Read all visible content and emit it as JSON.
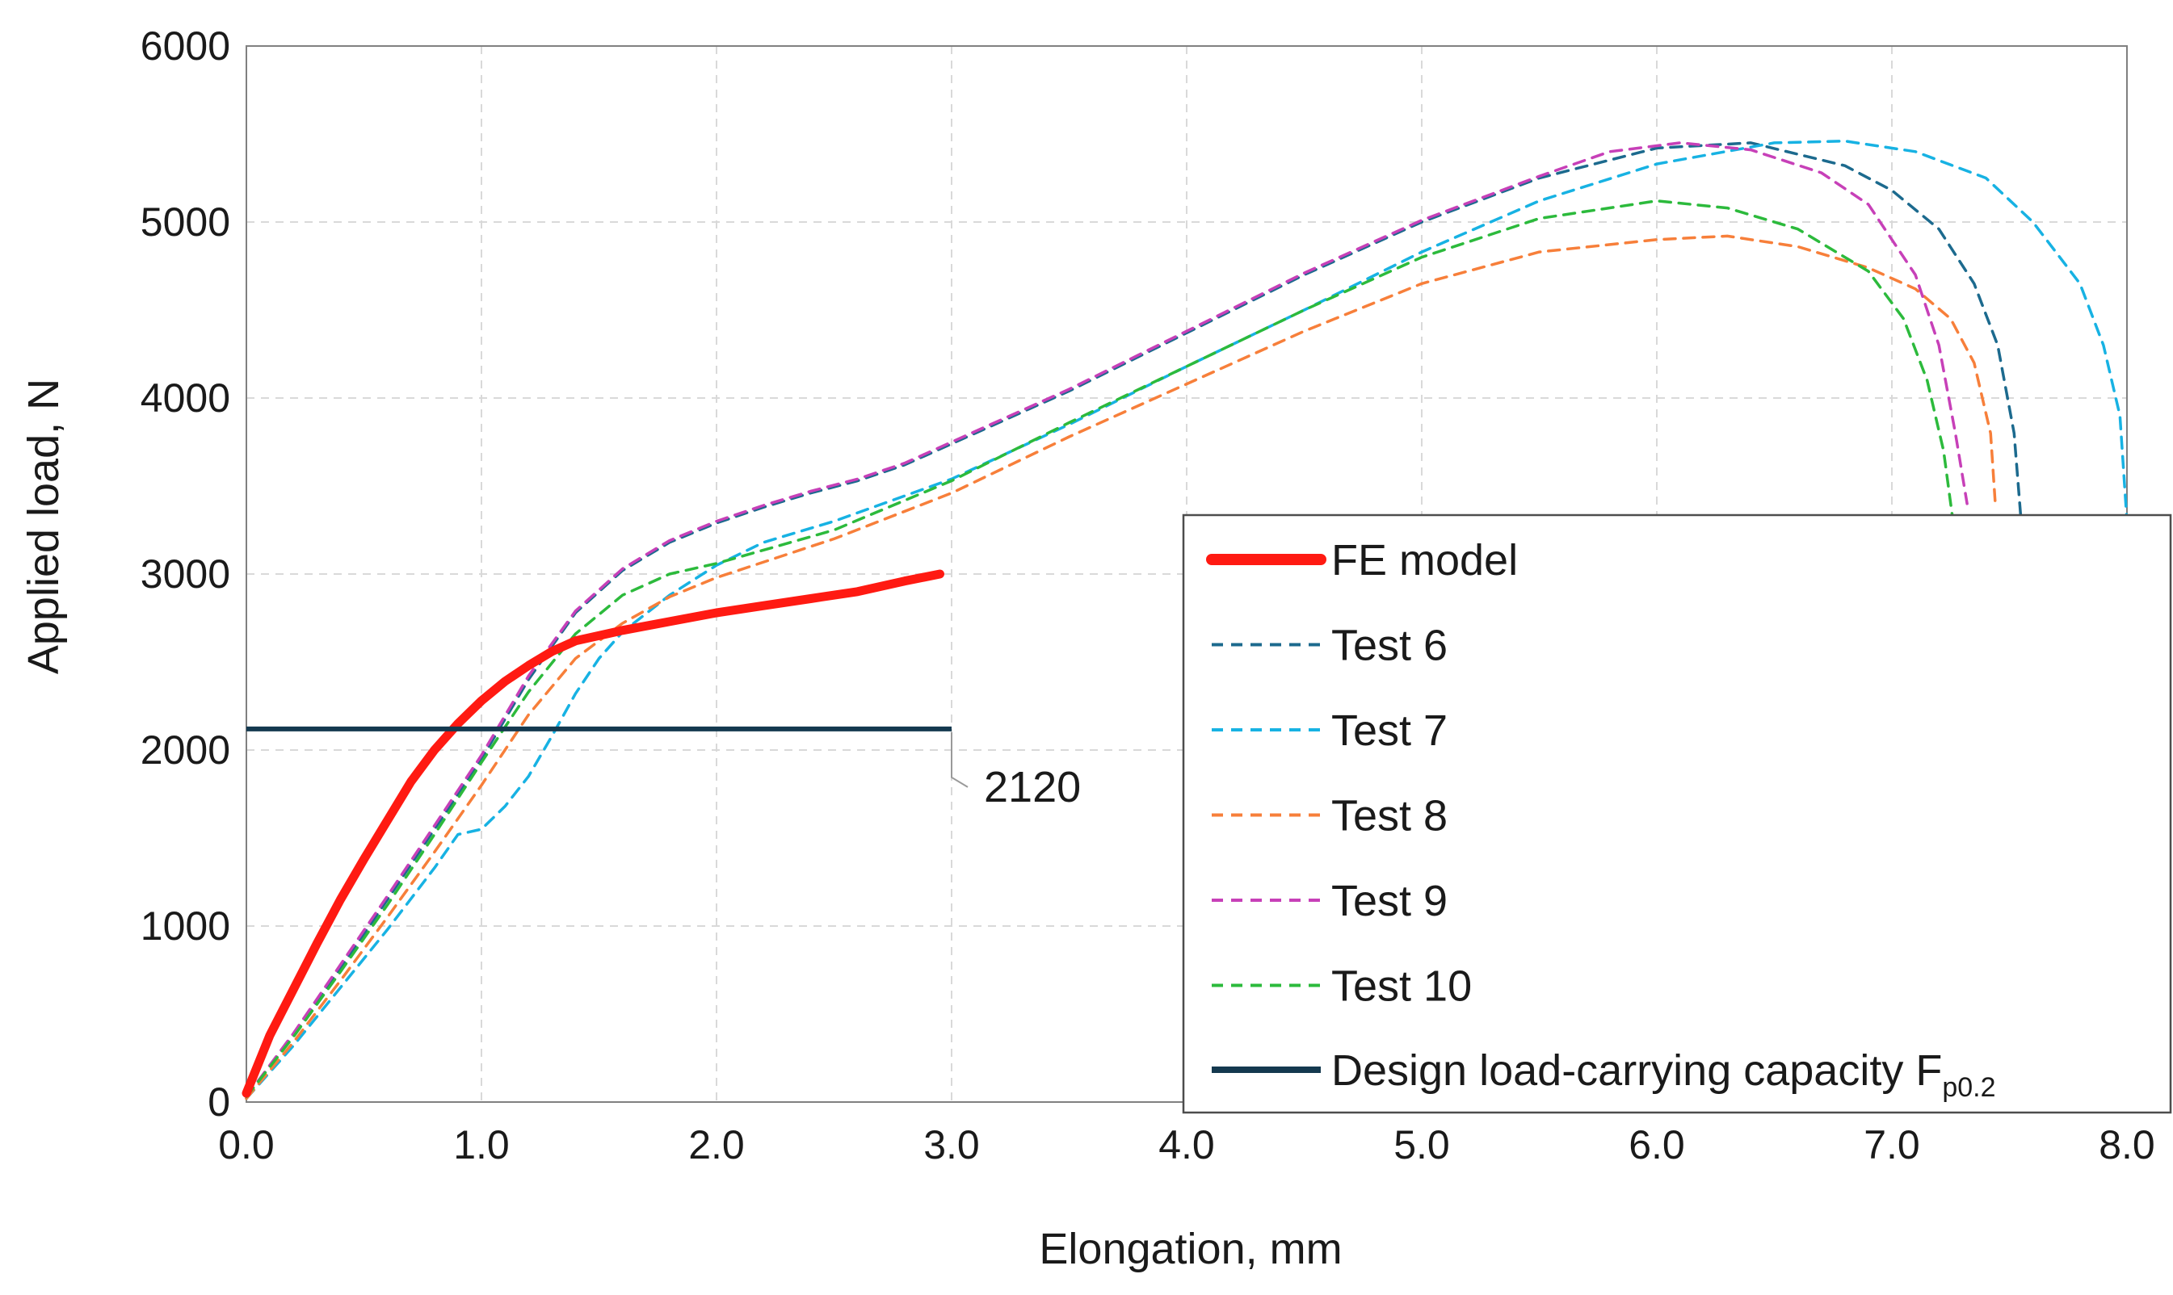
{
  "chart_data": {
    "type": "line",
    "xlabel": "Elongation, mm",
    "ylabel": "Applied load, N",
    "xlim": [
      0,
      8
    ],
    "ylim": [
      0,
      6000
    ],
    "x_ticks": [
      "0.0",
      "1.0",
      "2.0",
      "3.0",
      "4.0",
      "5.0",
      "6.0",
      "7.0",
      "8.0"
    ],
    "y_ticks": [
      "0",
      "1000",
      "2000",
      "3000",
      "4000",
      "5000",
      "6000"
    ],
    "grid": true,
    "legend_position": "bottom-right",
    "design_line": {
      "label_main": "Design load-carrying capacity F",
      "label_sub": "p0.2",
      "value": 2120,
      "x_range": [
        0,
        3.0
      ],
      "annotation": "2120",
      "color": "#14394f"
    },
    "series": [
      {
        "name": "FE model",
        "color": "#ff1a12",
        "dashed": false,
        "points": [
          [
            0,
            50
          ],
          [
            0.1,
            380
          ],
          [
            0.2,
            640
          ],
          [
            0.3,
            900
          ],
          [
            0.4,
            1150
          ],
          [
            0.5,
            1380
          ],
          [
            0.6,
            1600
          ],
          [
            0.7,
            1820
          ],
          [
            0.8,
            2000
          ],
          [
            0.9,
            2150
          ],
          [
            1.0,
            2280
          ],
          [
            1.1,
            2390
          ],
          [
            1.2,
            2480
          ],
          [
            1.3,
            2560
          ],
          [
            1.4,
            2620
          ],
          [
            1.6,
            2680
          ],
          [
            1.8,
            2730
          ],
          [
            2.0,
            2780
          ],
          [
            2.2,
            2820
          ],
          [
            2.4,
            2860
          ],
          [
            2.6,
            2900
          ],
          [
            2.8,
            2960
          ],
          [
            2.95,
            3000
          ]
        ]
      },
      {
        "name": "Test 6",
        "color": "#1c6a8e",
        "dashed": true,
        "points": [
          [
            0,
            30
          ],
          [
            0.2,
            380
          ],
          [
            0.4,
            760
          ],
          [
            0.6,
            1150
          ],
          [
            0.8,
            1550
          ],
          [
            1.0,
            1950
          ],
          [
            1.2,
            2400
          ],
          [
            1.4,
            2780
          ],
          [
            1.6,
            3020
          ],
          [
            1.8,
            3180
          ],
          [
            2.0,
            3290
          ],
          [
            2.2,
            3380
          ],
          [
            2.4,
            3460
          ],
          [
            2.6,
            3530
          ],
          [
            2.8,
            3620
          ],
          [
            3.0,
            3740
          ],
          [
            3.5,
            4040
          ],
          [
            4.0,
            4370
          ],
          [
            4.5,
            4700
          ],
          [
            5.0,
            5000
          ],
          [
            5.5,
            5250
          ],
          [
            6.0,
            5420
          ],
          [
            6.4,
            5450
          ],
          [
            6.8,
            5320
          ],
          [
            7.0,
            5180
          ],
          [
            7.2,
            4960
          ],
          [
            7.35,
            4650
          ],
          [
            7.45,
            4300
          ],
          [
            7.52,
            3800
          ],
          [
            7.55,
            3300
          ]
        ]
      },
      {
        "name": "Test 7",
        "color": "#17b2e3",
        "dashed": true,
        "points": [
          [
            0,
            20
          ],
          [
            0.2,
            320
          ],
          [
            0.4,
            650
          ],
          [
            0.6,
            980
          ],
          [
            0.8,
            1330
          ],
          [
            0.9,
            1520
          ],
          [
            1.0,
            1550
          ],
          [
            1.1,
            1680
          ],
          [
            1.2,
            1850
          ],
          [
            1.3,
            2080
          ],
          [
            1.4,
            2320
          ],
          [
            1.5,
            2520
          ],
          [
            1.6,
            2670
          ],
          [
            1.8,
            2880
          ],
          [
            2.0,
            3050
          ],
          [
            2.2,
            3180
          ],
          [
            2.5,
            3300
          ],
          [
            3.0,
            3540
          ],
          [
            3.5,
            3850
          ],
          [
            4.0,
            4180
          ],
          [
            4.5,
            4500
          ],
          [
            5.0,
            4830
          ],
          [
            5.5,
            5120
          ],
          [
            6.0,
            5330
          ],
          [
            6.5,
            5450
          ],
          [
            6.8,
            5460
          ],
          [
            7.1,
            5400
          ],
          [
            7.4,
            5250
          ],
          [
            7.6,
            5000
          ],
          [
            7.8,
            4650
          ],
          [
            7.9,
            4300
          ],
          [
            7.97,
            3900
          ],
          [
            8.0,
            3300
          ]
        ]
      },
      {
        "name": "Test 8",
        "color": "#f77f3a",
        "dashed": true,
        "points": [
          [
            0,
            20
          ],
          [
            0.2,
            340
          ],
          [
            0.4,
            690
          ],
          [
            0.6,
            1050
          ],
          [
            0.8,
            1420
          ],
          [
            1.0,
            1800
          ],
          [
            1.2,
            2200
          ],
          [
            1.4,
            2520
          ],
          [
            1.6,
            2720
          ],
          [
            1.8,
            2870
          ],
          [
            2.0,
            2980
          ],
          [
            2.5,
            3200
          ],
          [
            3.0,
            3460
          ],
          [
            3.5,
            3780
          ],
          [
            4.0,
            4080
          ],
          [
            4.5,
            4380
          ],
          [
            5.0,
            4650
          ],
          [
            5.5,
            4830
          ],
          [
            6.0,
            4900
          ],
          [
            6.3,
            4920
          ],
          [
            6.6,
            4860
          ],
          [
            6.9,
            4740
          ],
          [
            7.1,
            4620
          ],
          [
            7.25,
            4450
          ],
          [
            7.35,
            4200
          ],
          [
            7.42,
            3800
          ],
          [
            7.44,
            3400
          ]
        ]
      },
      {
        "name": "Test 9",
        "color": "#c740b8",
        "dashed": true,
        "points": [
          [
            0,
            30
          ],
          [
            0.2,
            390
          ],
          [
            0.4,
            780
          ],
          [
            0.6,
            1170
          ],
          [
            0.8,
            1570
          ],
          [
            1.0,
            1970
          ],
          [
            1.2,
            2420
          ],
          [
            1.4,
            2790
          ],
          [
            1.6,
            3030
          ],
          [
            1.8,
            3190
          ],
          [
            2.0,
            3300
          ],
          [
            2.2,
            3390
          ],
          [
            2.4,
            3470
          ],
          [
            2.6,
            3540
          ],
          [
            2.8,
            3630
          ],
          [
            3.0,
            3750
          ],
          [
            3.5,
            4050
          ],
          [
            4.0,
            4380
          ],
          [
            4.5,
            4710
          ],
          [
            5.0,
            5010
          ],
          [
            5.5,
            5260
          ],
          [
            5.8,
            5400
          ],
          [
            6.1,
            5450
          ],
          [
            6.4,
            5410
          ],
          [
            6.7,
            5280
          ],
          [
            6.9,
            5100
          ],
          [
            7.1,
            4700
          ],
          [
            7.2,
            4300
          ],
          [
            7.27,
            3800
          ],
          [
            7.32,
            3400
          ]
        ]
      },
      {
        "name": "Test 10",
        "color": "#2cba3c",
        "dashed": true,
        "points": [
          [
            0,
            30
          ],
          [
            0.2,
            370
          ],
          [
            0.4,
            740
          ],
          [
            0.6,
            1120
          ],
          [
            0.8,
            1520
          ],
          [
            1.0,
            1930
          ],
          [
            1.2,
            2330
          ],
          [
            1.4,
            2660
          ],
          [
            1.6,
            2880
          ],
          [
            1.8,
            3000
          ],
          [
            2.0,
            3060
          ],
          [
            2.5,
            3250
          ],
          [
            3.0,
            3530
          ],
          [
            3.5,
            3860
          ],
          [
            4.0,
            4180
          ],
          [
            4.5,
            4500
          ],
          [
            5.0,
            4800
          ],
          [
            5.5,
            5020
          ],
          [
            6.0,
            5120
          ],
          [
            6.3,
            5080
          ],
          [
            6.6,
            4960
          ],
          [
            6.9,
            4720
          ],
          [
            7.05,
            4450
          ],
          [
            7.15,
            4100
          ],
          [
            7.22,
            3700
          ],
          [
            7.26,
            3300
          ]
        ]
      }
    ]
  }
}
